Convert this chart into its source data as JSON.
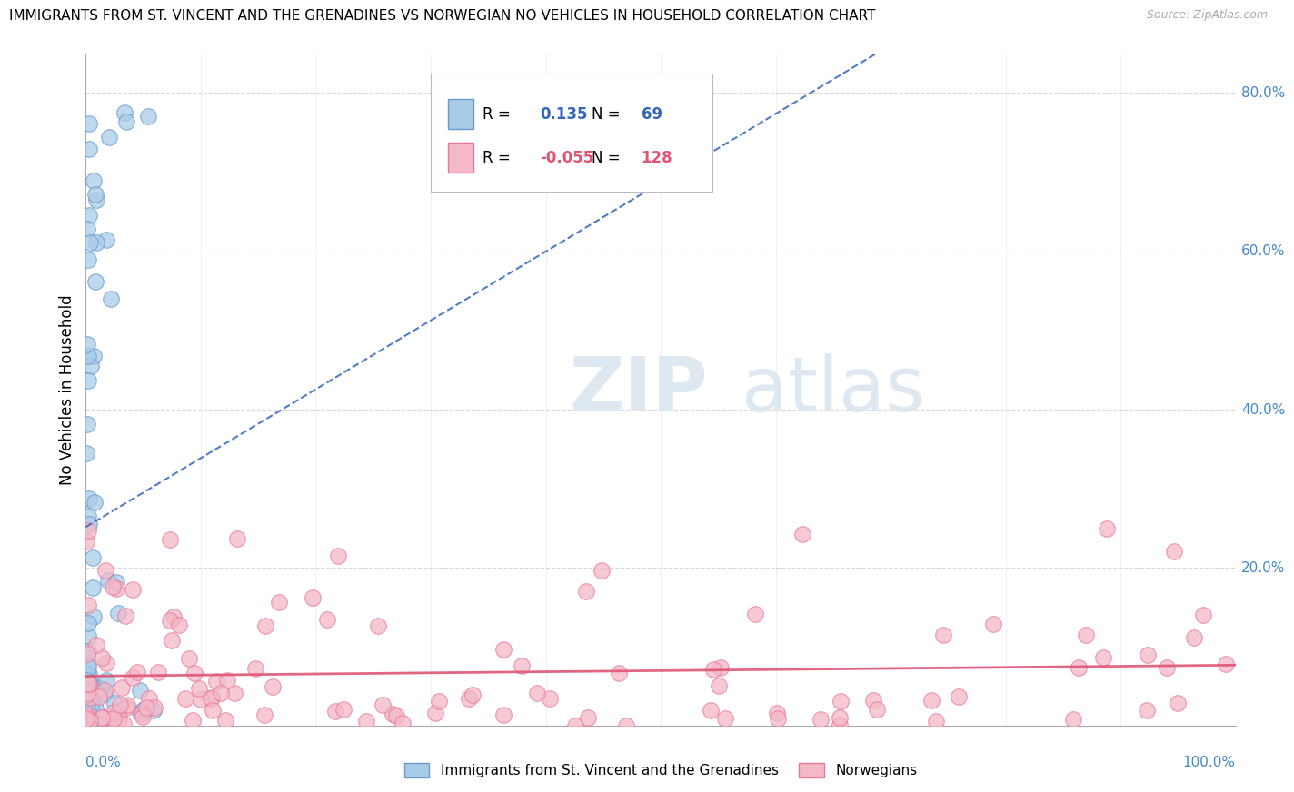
{
  "title": "IMMIGRANTS FROM ST. VINCENT AND THE GRENADINES VS NORWEGIAN NO VEHICLES IN HOUSEHOLD CORRELATION CHART",
  "source": "Source: ZipAtlas.com",
  "ylabel": "No Vehicles in Household",
  "y_ticks": [
    0.0,
    0.2,
    0.4,
    0.6,
    0.8
  ],
  "y_tick_labels": [
    "",
    "20.0%",
    "40.0%",
    "60.0%",
    "80.0%"
  ],
  "xlim": [
    0.0,
    1.0
  ],
  "ylim": [
    0.0,
    0.85
  ],
  "legend1_r": "0.135",
  "legend1_n": "69",
  "legend2_r": "-0.055",
  "legend2_n": "128",
  "blue_color": "#a8cce8",
  "blue_edge_color": "#6699cc",
  "pink_color": "#f4b8c8",
  "pink_edge_color": "#e87898",
  "blue_line_color": "#3366bb",
  "pink_line_color": "#dd5577",
  "watermark_zip": "ZIP",
  "watermark_atlas": "atlas",
  "legend_label1": "Immigrants from St. Vincent and the Grenadines",
  "legend_label2": "Norwegians",
  "grid_color": "#cccccc",
  "title_fontsize": 11,
  "source_fontsize": 9,
  "axis_label_color": "#4488cc",
  "axis_label_fontsize": 11
}
